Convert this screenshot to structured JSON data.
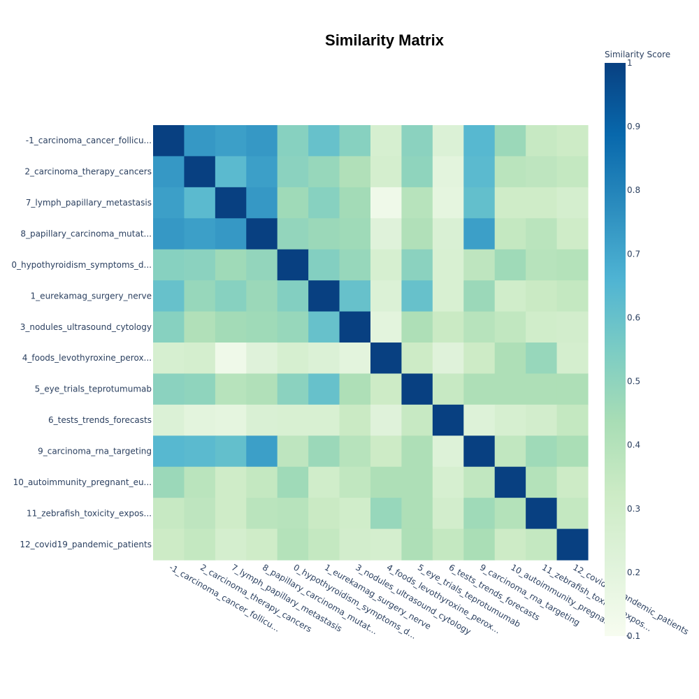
{
  "chart_data": {
    "type": "heatmap",
    "title": "Similarity Matrix",
    "colorbar": {
      "title": "Similarity Score",
      "range": [
        0.1,
        1
      ],
      "ticks": [
        "1",
        "0.9",
        "0.8",
        "0.7",
        "0.6",
        "0.5",
        "0.4",
        "0.3",
        "0.2",
        "0.1"
      ],
      "tick_values": [
        1,
        0.9,
        0.8,
        0.7,
        0.6,
        0.5,
        0.4,
        0.3,
        0.2,
        0.1
      ],
      "colorscale": [
        [
          0.0,
          "#f7fcf0"
        ],
        [
          0.125,
          "#e0f3db"
        ],
        [
          0.25,
          "#ccebc5"
        ],
        [
          0.375,
          "#a8ddb5"
        ],
        [
          0.5,
          "#7bccc4"
        ],
        [
          0.625,
          "#4eb3d3"
        ],
        [
          0.75,
          "#2b8cbe"
        ],
        [
          0.875,
          "#0868ac"
        ],
        [
          1.0,
          "#084081"
        ]
      ]
    },
    "labels": [
      "-1_carcinoma_cancer_follicu...",
      "2_carcinoma_therapy_cancers",
      "7_lymph_papillary_metastasis",
      "8_papillary_carcinoma_mutat...",
      "0_hypothyroidism_symptoms_d...",
      "1_eurekamag_surgery_nerve",
      "3_nodules_ultrasound_cytology",
      "4_foods_levothyroxine_perox...",
      "5_eye_trials_teprotumumab",
      "6_tests_trends_forecasts",
      "9_carcinoma_rna_targeting",
      "10_autoimmunity_pregnant_eu...",
      "11_zebrafish_toxicity_expos...",
      "12_covid19_pandemic_patients"
    ],
    "z": [
      [
        1.0,
        0.74,
        0.72,
        0.74,
        0.52,
        0.6,
        0.52,
        0.27,
        0.51,
        0.24,
        0.64,
        0.47,
        0.34,
        0.32
      ],
      [
        0.74,
        1.0,
        0.63,
        0.72,
        0.51,
        0.48,
        0.41,
        0.28,
        0.5,
        0.2,
        0.63,
        0.38,
        0.37,
        0.35
      ],
      [
        0.72,
        0.63,
        1.0,
        0.74,
        0.46,
        0.52,
        0.45,
        0.14,
        0.39,
        0.19,
        0.61,
        0.31,
        0.31,
        0.28
      ],
      [
        0.74,
        0.72,
        0.74,
        1.0,
        0.49,
        0.47,
        0.46,
        0.22,
        0.41,
        0.25,
        0.72,
        0.35,
        0.38,
        0.31
      ],
      [
        0.52,
        0.51,
        0.46,
        0.49,
        1.0,
        0.53,
        0.48,
        0.27,
        0.51,
        0.26,
        0.37,
        0.46,
        0.39,
        0.4
      ],
      [
        0.6,
        0.48,
        0.52,
        0.47,
        0.53,
        1.0,
        0.6,
        0.24,
        0.6,
        0.26,
        0.47,
        0.3,
        0.33,
        0.35
      ],
      [
        0.52,
        0.41,
        0.45,
        0.46,
        0.48,
        0.6,
        1.0,
        0.2,
        0.42,
        0.33,
        0.39,
        0.36,
        0.3,
        0.29
      ],
      [
        0.27,
        0.28,
        0.14,
        0.22,
        0.27,
        0.24,
        0.2,
        1.0,
        0.32,
        0.22,
        0.32,
        0.42,
        0.48,
        0.28
      ],
      [
        0.51,
        0.5,
        0.39,
        0.41,
        0.51,
        0.6,
        0.42,
        0.32,
        1.0,
        0.34,
        0.42,
        0.42,
        0.42,
        0.42
      ],
      [
        0.24,
        0.2,
        0.19,
        0.25,
        0.26,
        0.26,
        0.33,
        0.22,
        0.34,
        1.0,
        0.23,
        0.27,
        0.29,
        0.35
      ],
      [
        0.64,
        0.63,
        0.61,
        0.72,
        0.37,
        0.47,
        0.39,
        0.32,
        0.42,
        0.23,
        1.0,
        0.36,
        0.46,
        0.43
      ],
      [
        0.47,
        0.38,
        0.31,
        0.35,
        0.46,
        0.3,
        0.36,
        0.42,
        0.42,
        0.27,
        0.36,
        1.0,
        0.4,
        0.32
      ],
      [
        0.34,
        0.37,
        0.31,
        0.38,
        0.39,
        0.33,
        0.3,
        0.48,
        0.42,
        0.29,
        0.46,
        0.4,
        1.0,
        0.35
      ],
      [
        0.32,
        0.35,
        0.28,
        0.31,
        0.4,
        0.35,
        0.29,
        0.28,
        0.42,
        0.35,
        0.43,
        0.32,
        0.35,
        1.0
      ]
    ]
  }
}
